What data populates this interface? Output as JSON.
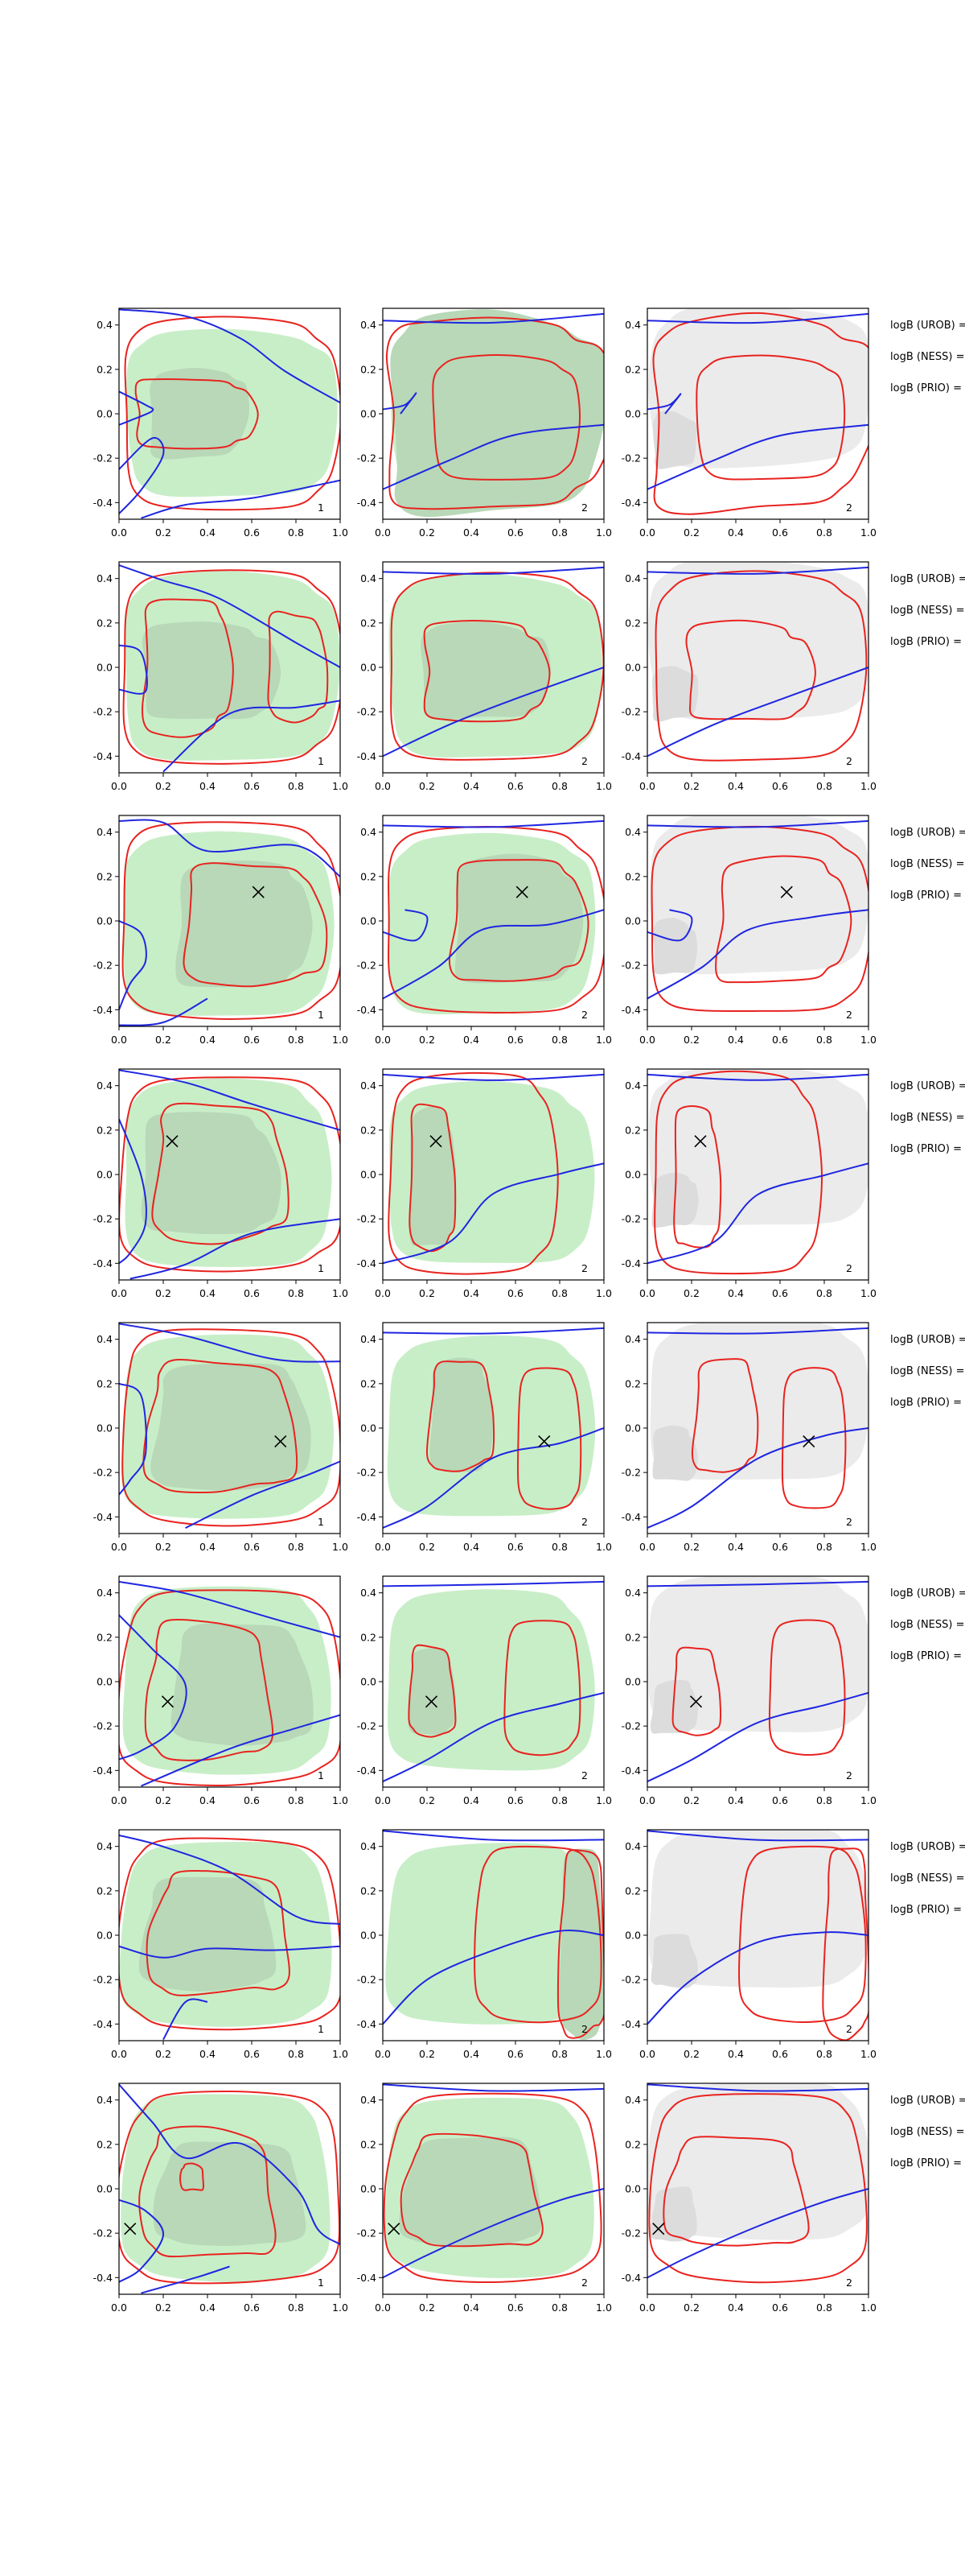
{
  "figure": {
    "rows": 8,
    "columns": 3,
    "x_ticks": [
      "0.0",
      "0.2",
      "0.4",
      "0.6",
      "0.8",
      "1.0"
    ],
    "y_ticks": [
      "0.4",
      "0.2",
      "0.0",
      "-0.2",
      "-0.4"
    ],
    "panel_tags": [
      "1",
      "2",
      "2"
    ],
    "side_labels": [
      "logB (UROB) =",
      "logB (NESS) =",
      "logB (PRIO) ="
    ],
    "colors": {
      "red": "#e8231f",
      "blue": "#1f26e0",
      "green_fill": "#c8eec8",
      "green_inner": "#b8d8b8",
      "gray_fill": "#ebebeb"
    }
  },
  "chart_data": [
    {
      "type": "contour",
      "row": 1,
      "markers": []
    },
    {
      "type": "contour",
      "row": 2,
      "markers": []
    },
    {
      "type": "contour",
      "row": 3,
      "markers": [
        {
          "x": 0.63,
          "y": 0.13
        }
      ]
    },
    {
      "type": "contour",
      "row": 4,
      "markers": [
        {
          "x": 0.24,
          "y": 0.15
        }
      ]
    },
    {
      "type": "contour",
      "row": 5,
      "markers": [
        {
          "x": 0.73,
          "y": -0.06
        }
      ]
    },
    {
      "type": "contour",
      "row": 6,
      "markers": [
        {
          "x": 0.22,
          "y": -0.09
        }
      ]
    },
    {
      "type": "contour",
      "row": 7,
      "markers": []
    },
    {
      "type": "contour",
      "row": 8,
      "markers": [
        {
          "x": 0.05,
          "y": -0.18
        }
      ]
    }
  ]
}
